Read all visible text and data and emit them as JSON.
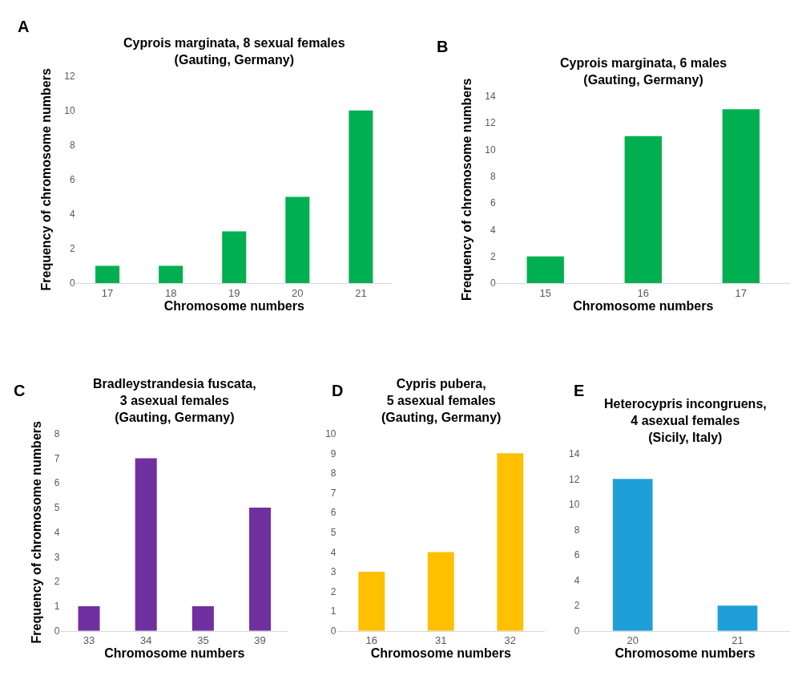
{
  "chart_data": [
    {
      "type": "bar",
      "title": "Cyprois marginata, 8 sexual females\n(Gauting, Germany)",
      "annotations": [
        "A"
      ],
      "xlabel": "Chromosome numbers",
      "ylabel": "Frequency of chromosome numbers",
      "categories": [
        "17",
        "18",
        "19",
        "20",
        "21"
      ],
      "values": [
        1,
        1,
        3,
        5,
        10
      ],
      "color": "#00b050",
      "ylim": [
        0,
        12
      ],
      "yticks": [
        0,
        2,
        4,
        6,
        8,
        10,
        12
      ],
      "grid": false
    },
    {
      "type": "bar",
      "title": "Cyprois marginata, 6 males\n(Gauting, Germany)",
      "annotations": [
        "B"
      ],
      "xlabel": "Chromosome numbers",
      "ylabel": "Frequency of chromosome numbers",
      "categories": [
        "15",
        "16",
        "17"
      ],
      "values": [
        2,
        11,
        13
      ],
      "color": "#00b050",
      "ylim": [
        0,
        14
      ],
      "yticks": [
        0,
        2,
        4,
        6,
        8,
        10,
        12,
        14
      ],
      "grid": false
    },
    {
      "type": "bar",
      "title": "Bradleystrandesia fuscata,\n3 asexual females\n(Gauting, Germany)",
      "annotations": [
        "C"
      ],
      "xlabel": "Chromosome numbers",
      "ylabel": "Frequency of chromosome numbers",
      "categories": [
        "33",
        "34",
        "35",
        "39"
      ],
      "values": [
        1,
        7,
        1,
        5
      ],
      "color": "#7030a0",
      "ylim": [
        0,
        8
      ],
      "yticks": [
        0,
        1,
        2,
        3,
        4,
        5,
        6,
        7,
        8
      ],
      "grid": false
    },
    {
      "type": "bar",
      "title": "Cypris pubera,\n5 asexual females\n(Gauting, Germany)",
      "annotations": [
        "D"
      ],
      "xlabel": "Chromosome numbers",
      "categories": [
        "16",
        "31",
        "32"
      ],
      "values": [
        3,
        4,
        9
      ],
      "color": "#ffc000",
      "ylim": [
        0,
        10
      ],
      "yticks": [
        0,
        1,
        2,
        3,
        4,
        5,
        6,
        7,
        8,
        9,
        10
      ],
      "grid": false
    },
    {
      "type": "bar",
      "title": "Heterocypris incongruens,\n4 asexual females\n(Sicily, Italy)",
      "annotations": [
        "E"
      ],
      "xlabel": "Chromosome numbers",
      "categories": [
        "20",
        "21"
      ],
      "values": [
        12,
        2
      ],
      "color": "#1f9fd8",
      "ylim": [
        0,
        14
      ],
      "yticks": [
        0,
        2,
        4,
        6,
        8,
        10,
        12,
        14
      ],
      "grid": false
    }
  ]
}
